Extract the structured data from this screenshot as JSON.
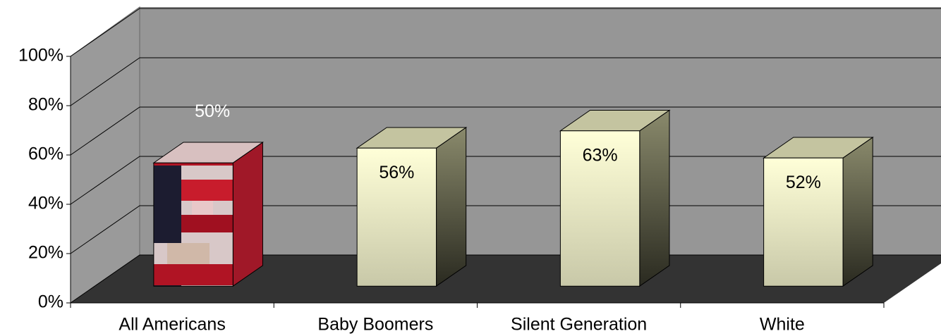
{
  "chart_data": {
    "type": "bar3d",
    "categories": [
      "All Americans",
      "Baby Boomers",
      "Silent Generation",
      "White"
    ],
    "values": [
      50,
      56,
      63,
      52
    ],
    "value_labels": [
      "50%",
      "56%",
      "63%",
      "52%"
    ],
    "colors": [
      "url(#flag)",
      "#ffffcc",
      "#ffffcc",
      "#ffffcc"
    ],
    "ylim": [
      0,
      100
    ],
    "yticks": [
      {
        "value": 0,
        "label": "0%"
      },
      {
        "value": 20,
        "label": "20%"
      },
      {
        "value": 40,
        "label": "40%"
      },
      {
        "value": 60,
        "label": "60%"
      },
      {
        "value": 80,
        "label": "80%"
      },
      {
        "value": 100,
        "label": "100%"
      }
    ],
    "grid": true
  }
}
